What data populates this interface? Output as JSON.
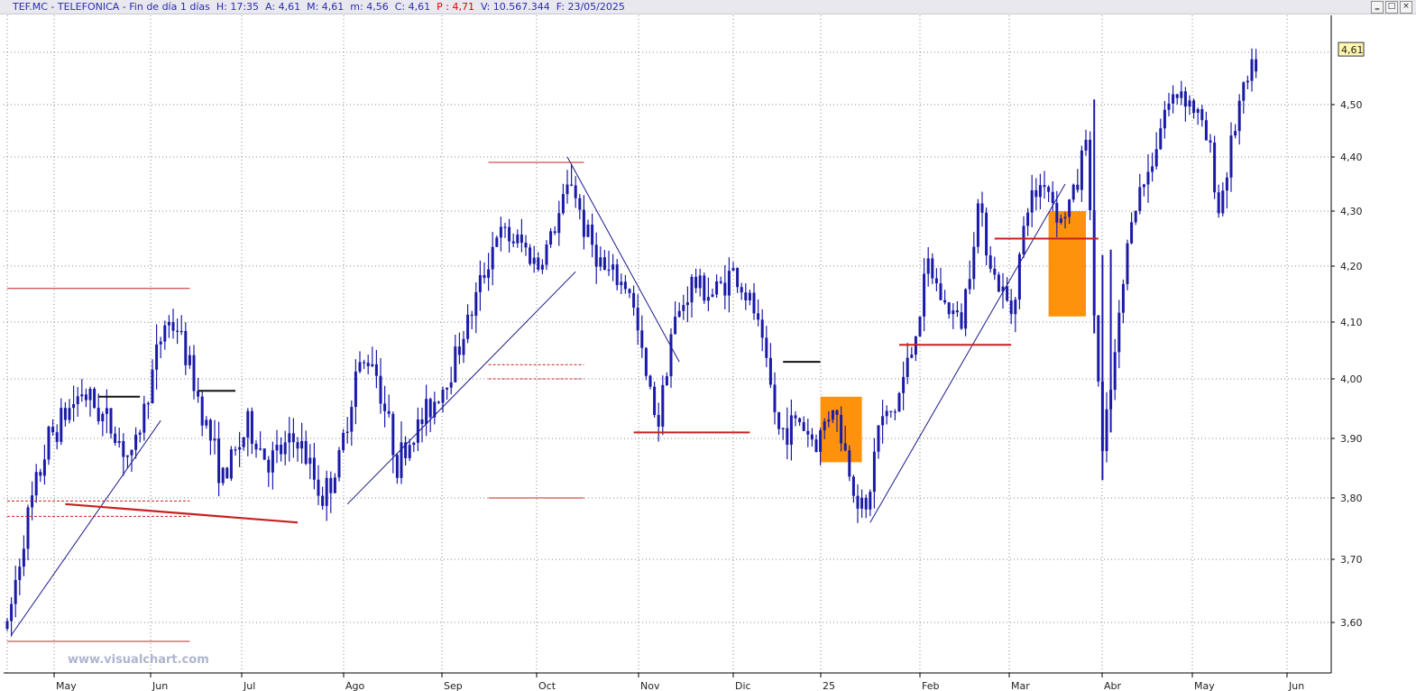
{
  "header": {
    "ticker": "TEF.MC",
    "name": "TELEFONICA",
    "period": "Fin de día 1 días",
    "time_label": "H:",
    "time": "17:35",
    "open_label": "A:",
    "open": "4,61",
    "high_label": "M:",
    "high": "4,61",
    "low_label": "m:",
    "low": "4,56",
    "close_label": "C:",
    "close": "4,61",
    "p_label": "P :",
    "p": "4,71",
    "volume_label": "V:",
    "volume": "10.567.344",
    "date_label": "F:",
    "date": "23/05/2025"
  },
  "window_buttons": [
    "‗",
    "□",
    "×"
  ],
  "watermark": "www.visualchart.com",
  "chart_data": {
    "type": "candlestick",
    "title": "",
    "x_ticks": [
      "May",
      "Jun",
      "Jul",
      "Ago",
      "Sep",
      "Oct",
      "Nov",
      "Dic",
      "25",
      "Feb",
      "Mar",
      "Abr",
      "May",
      "Jun"
    ],
    "y_ticks": [
      "3,60",
      "3,70",
      "3,80",
      "3,90",
      "4,00",
      "4,10",
      "4,20",
      "4,30",
      "4,40",
      "4,50"
    ],
    "y_range": [
      3.52,
      4.67
    ],
    "last_price": "4,61",
    "grid": true,
    "colors": {
      "candle": "#1a1aa8",
      "trend": "#1a1a8c",
      "support": "#c82020",
      "box": "#ff8c00",
      "grid": "#8a8a8a"
    },
    "anchors": [
      {
        "i": 0,
        "v": 3.59
      },
      {
        "i": 4,
        "v": 3.74
      },
      {
        "i": 10,
        "v": 3.9
      },
      {
        "i": 18,
        "v": 3.98
      },
      {
        "i": 25,
        "v": 3.92
      },
      {
        "i": 30,
        "v": 3.86
      },
      {
        "i": 38,
        "v": 4.1
      },
      {
        "i": 41,
        "v": 4.09
      },
      {
        "i": 46,
        "v": 3.97
      },
      {
        "i": 52,
        "v": 3.83
      },
      {
        "i": 58,
        "v": 3.92
      },
      {
        "i": 63,
        "v": 3.86
      },
      {
        "i": 70,
        "v": 3.9
      },
      {
        "i": 76,
        "v": 3.8
      },
      {
        "i": 80,
        "v": 3.86
      },
      {
        "i": 84,
        "v": 4.01
      },
      {
        "i": 88,
        "v": 4.04
      },
      {
        "i": 94,
        "v": 3.86
      },
      {
        "i": 100,
        "v": 3.93
      },
      {
        "i": 106,
        "v": 4.0
      },
      {
        "i": 112,
        "v": 4.12
      },
      {
        "i": 118,
        "v": 4.26
      },
      {
        "i": 124,
        "v": 4.24
      },
      {
        "i": 128,
        "v": 4.2
      },
      {
        "i": 132,
        "v": 4.27
      },
      {
        "i": 136,
        "v": 4.36
      },
      {
        "i": 139,
        "v": 4.27
      },
      {
        "i": 144,
        "v": 4.19
      },
      {
        "i": 150,
        "v": 4.16
      },
      {
        "i": 154,
        "v": 4.0
      },
      {
        "i": 157,
        "v": 3.93
      },
      {
        "i": 160,
        "v": 4.08
      },
      {
        "i": 165,
        "v": 4.17
      },
      {
        "i": 170,
        "v": 4.15
      },
      {
        "i": 175,
        "v": 4.19
      },
      {
        "i": 180,
        "v": 4.12
      },
      {
        "i": 183,
        "v": 4.02
      },
      {
        "i": 186,
        "v": 3.91
      },
      {
        "i": 191,
        "v": 3.93
      },
      {
        "i": 195,
        "v": 3.89
      },
      {
        "i": 199,
        "v": 3.96
      },
      {
        "i": 204,
        "v": 3.82
      },
      {
        "i": 207,
        "v": 3.77
      },
      {
        "i": 210,
        "v": 3.92
      },
      {
        "i": 214,
        "v": 3.95
      },
      {
        "i": 218,
        "v": 4.05
      },
      {
        "i": 222,
        "v": 4.2
      },
      {
        "i": 226,
        "v": 4.13
      },
      {
        "i": 230,
        "v": 4.1
      },
      {
        "i": 234,
        "v": 4.31
      },
      {
        "i": 238,
        "v": 4.18
      },
      {
        "i": 242,
        "v": 4.12
      },
      {
        "i": 246,
        "v": 4.31
      },
      {
        "i": 250,
        "v": 4.36
      },
      {
        "i": 254,
        "v": 4.28
      },
      {
        "i": 258,
        "v": 4.35
      },
      {
        "i": 260,
        "v": 4.45
      },
      {
        "i": 262,
        "v": 4.12
      },
      {
        "i": 264,
        "v": 3.87
      },
      {
        "i": 266,
        "v": 3.98
      },
      {
        "i": 268,
        "v": 4.1
      },
      {
        "i": 271,
        "v": 4.3
      },
      {
        "i": 275,
        "v": 4.37
      },
      {
        "i": 279,
        "v": 4.49
      },
      {
        "i": 283,
        "v": 4.53
      },
      {
        "i": 287,
        "v": 4.48
      },
      {
        "i": 290,
        "v": 4.41
      },
      {
        "i": 292,
        "v": 4.3
      },
      {
        "i": 294,
        "v": 4.38
      },
      {
        "i": 297,
        "v": 4.5
      },
      {
        "i": 301,
        "v": 4.58
      }
    ],
    "trendlines": [
      {
        "from": [
          1,
          3.58
        ],
        "to": [
          37,
          3.93
        ]
      },
      {
        "from": [
          82,
          3.79
        ],
        "to": [
          137,
          4.19
        ]
      },
      {
        "from": [
          135,
          4.4
        ],
        "to": [
          162,
          4.03
        ]
      },
      {
        "from": [
          208,
          3.76
        ],
        "to": [
          255,
          4.35
        ]
      }
    ],
    "support_lines": [
      {
        "from": [
          0,
          4.16
        ],
        "to": [
          44,
          4.16
        ],
        "width": 1
      },
      {
        "from": [
          0,
          3.57
        ],
        "to": [
          44,
          3.57
        ],
        "width": 1
      },
      {
        "from": [
          116,
          4.39
        ],
        "to": [
          139,
          4.39
        ],
        "width": 1
      },
      {
        "from": [
          116,
          3.8
        ],
        "to": [
          139,
          3.8
        ],
        "width": 1
      },
      {
        "from": [
          14,
          3.79
        ],
        "to": [
          70,
          3.76
        ],
        "width": 2.2
      },
      {
        "from": [
          151,
          3.91
        ],
        "to": [
          179,
          3.91
        ],
        "width": 2
      },
      {
        "from": [
          215,
          4.06
        ],
        "to": [
          242,
          4.06
        ],
        "width": 2
      },
      {
        "from": [
          238,
          4.25
        ],
        "to": [
          263,
          4.25
        ],
        "width": 2
      }
    ],
    "resistance_marks": [
      {
        "from": [
          22,
          3.97
        ],
        "to": [
          32,
          3.97
        ]
      },
      {
        "from": [
          46,
          3.98
        ],
        "to": [
          55,
          3.98
        ]
      },
      {
        "from": [
          187,
          4.03
        ],
        "to": [
          196,
          4.03
        ]
      }
    ],
    "dashed_lines": [
      {
        "from": [
          0,
          3.795
        ],
        "to": [
          44,
          3.795
        ]
      },
      {
        "from": [
          0,
          3.77
        ],
        "to": [
          44,
          3.77
        ]
      },
      {
        "from": [
          116,
          4.025
        ],
        "to": [
          139,
          4.025
        ]
      },
      {
        "from": [
          116,
          4.0
        ],
        "to": [
          139,
          4.0
        ]
      }
    ],
    "boxes": [
      {
        "from": [
          196,
          3.97
        ],
        "to": [
          206,
          3.86
        ]
      },
      {
        "from": [
          251,
          4.3
        ],
        "to": [
          260,
          4.11
        ]
      }
    ]
  }
}
